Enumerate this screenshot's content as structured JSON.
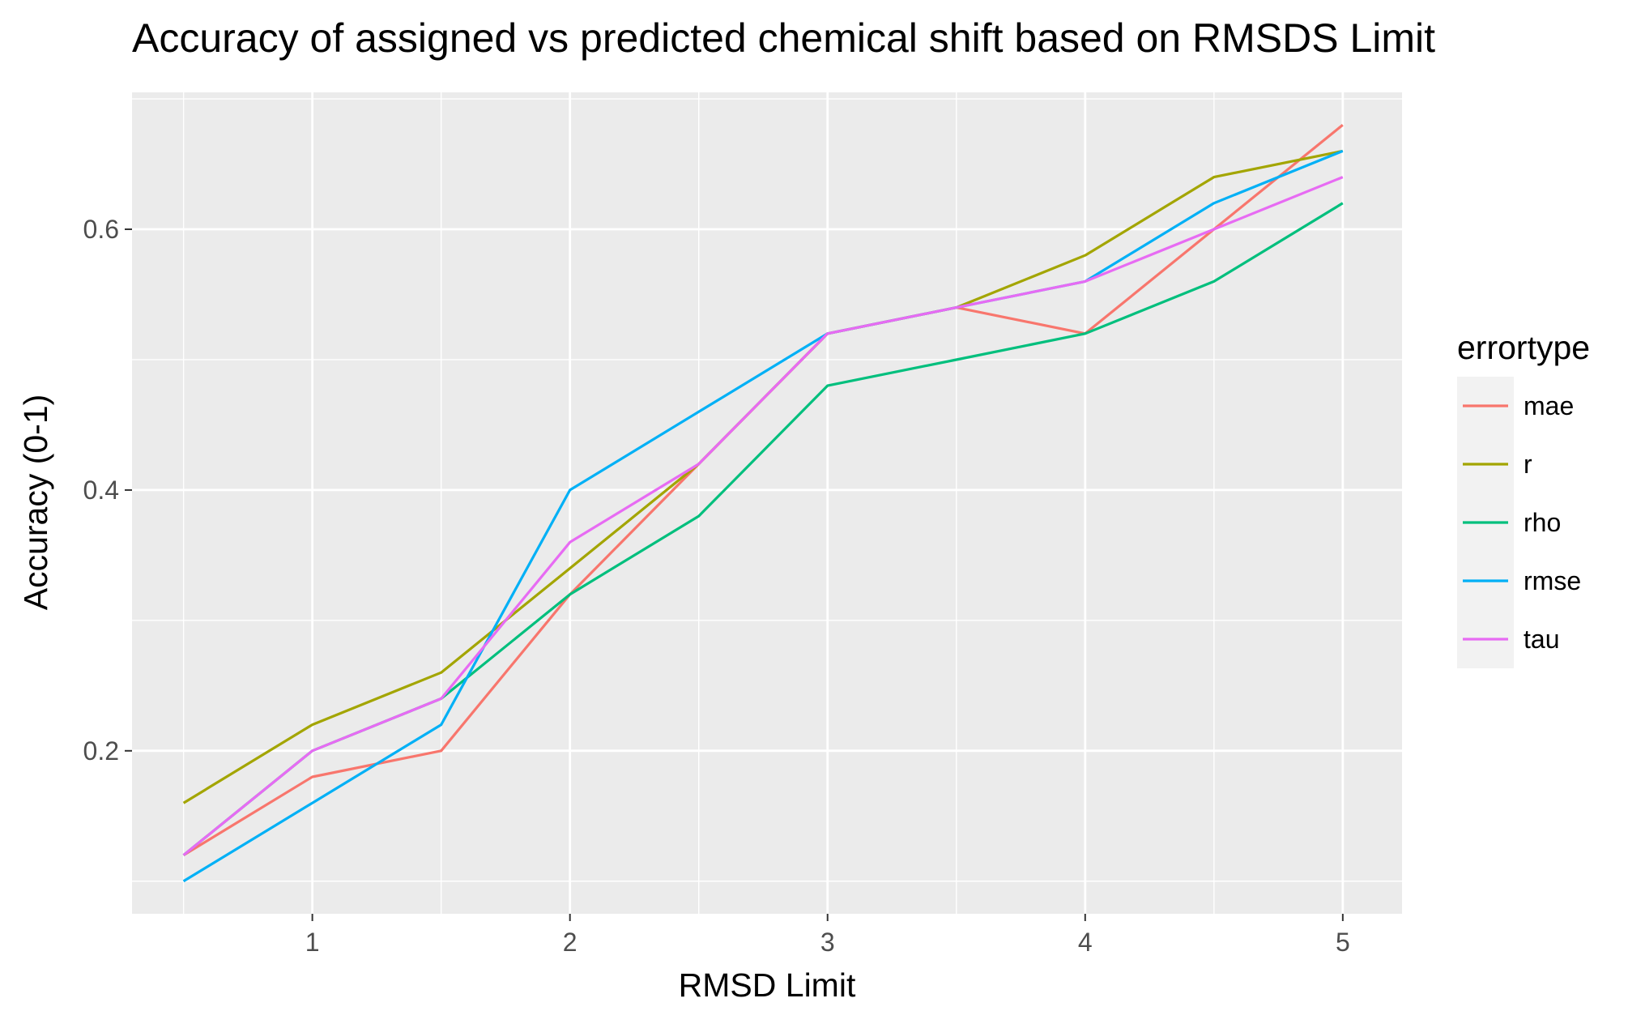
{
  "chart_data": {
    "type": "line",
    "title": "Accuracy of assigned vs  predicted chemical shift based on RMSDS Limit",
    "xlabel": "RMSD Limit",
    "ylabel": "Accuracy (0-1)",
    "x": [
      0.5,
      1,
      1.5,
      2,
      2.5,
      3,
      3.5,
      4,
      4.5,
      5
    ],
    "xlim": [
      0.3,
      5.23
    ],
    "ylim": [
      0.075,
      0.705
    ],
    "xticks": [
      1,
      2,
      3,
      4,
      5
    ],
    "xtick_labels": [
      "1",
      "2",
      "3",
      "4",
      "5"
    ],
    "yticks": [
      0.2,
      0.4,
      0.6
    ],
    "ytick_labels": [
      "0.2",
      "0.4",
      "0.6"
    ],
    "grid": true,
    "background": "#ebebeb",
    "legend": {
      "title": "errortype",
      "position": "right"
    },
    "series": [
      {
        "name": "mae",
        "color": "#f8766d",
        "values": [
          0.12,
          0.18,
          0.2,
          0.32,
          0.42,
          0.52,
          0.54,
          0.52,
          0.6,
          0.68
        ]
      },
      {
        "name": "r",
        "color": "#a3a500",
        "values": [
          0.16,
          0.22,
          0.26,
          0.34,
          0.42,
          0.52,
          0.54,
          0.58,
          0.64,
          0.66
        ]
      },
      {
        "name": "rho",
        "color": "#00bf7d",
        "values": [
          0.12,
          0.2,
          0.24,
          0.32,
          0.38,
          0.48,
          0.5,
          0.52,
          0.56,
          0.62
        ]
      },
      {
        "name": "rmse",
        "color": "#00b0f6",
        "values": [
          0.1,
          0.16,
          0.22,
          0.4,
          0.46,
          0.52,
          0.54,
          0.56,
          0.62,
          0.66
        ]
      },
      {
        "name": "tau",
        "color": "#e76bf3",
        "values": [
          0.12,
          0.2,
          0.24,
          0.36,
          0.42,
          0.52,
          0.54,
          0.56,
          0.6,
          0.64
        ]
      }
    ]
  }
}
